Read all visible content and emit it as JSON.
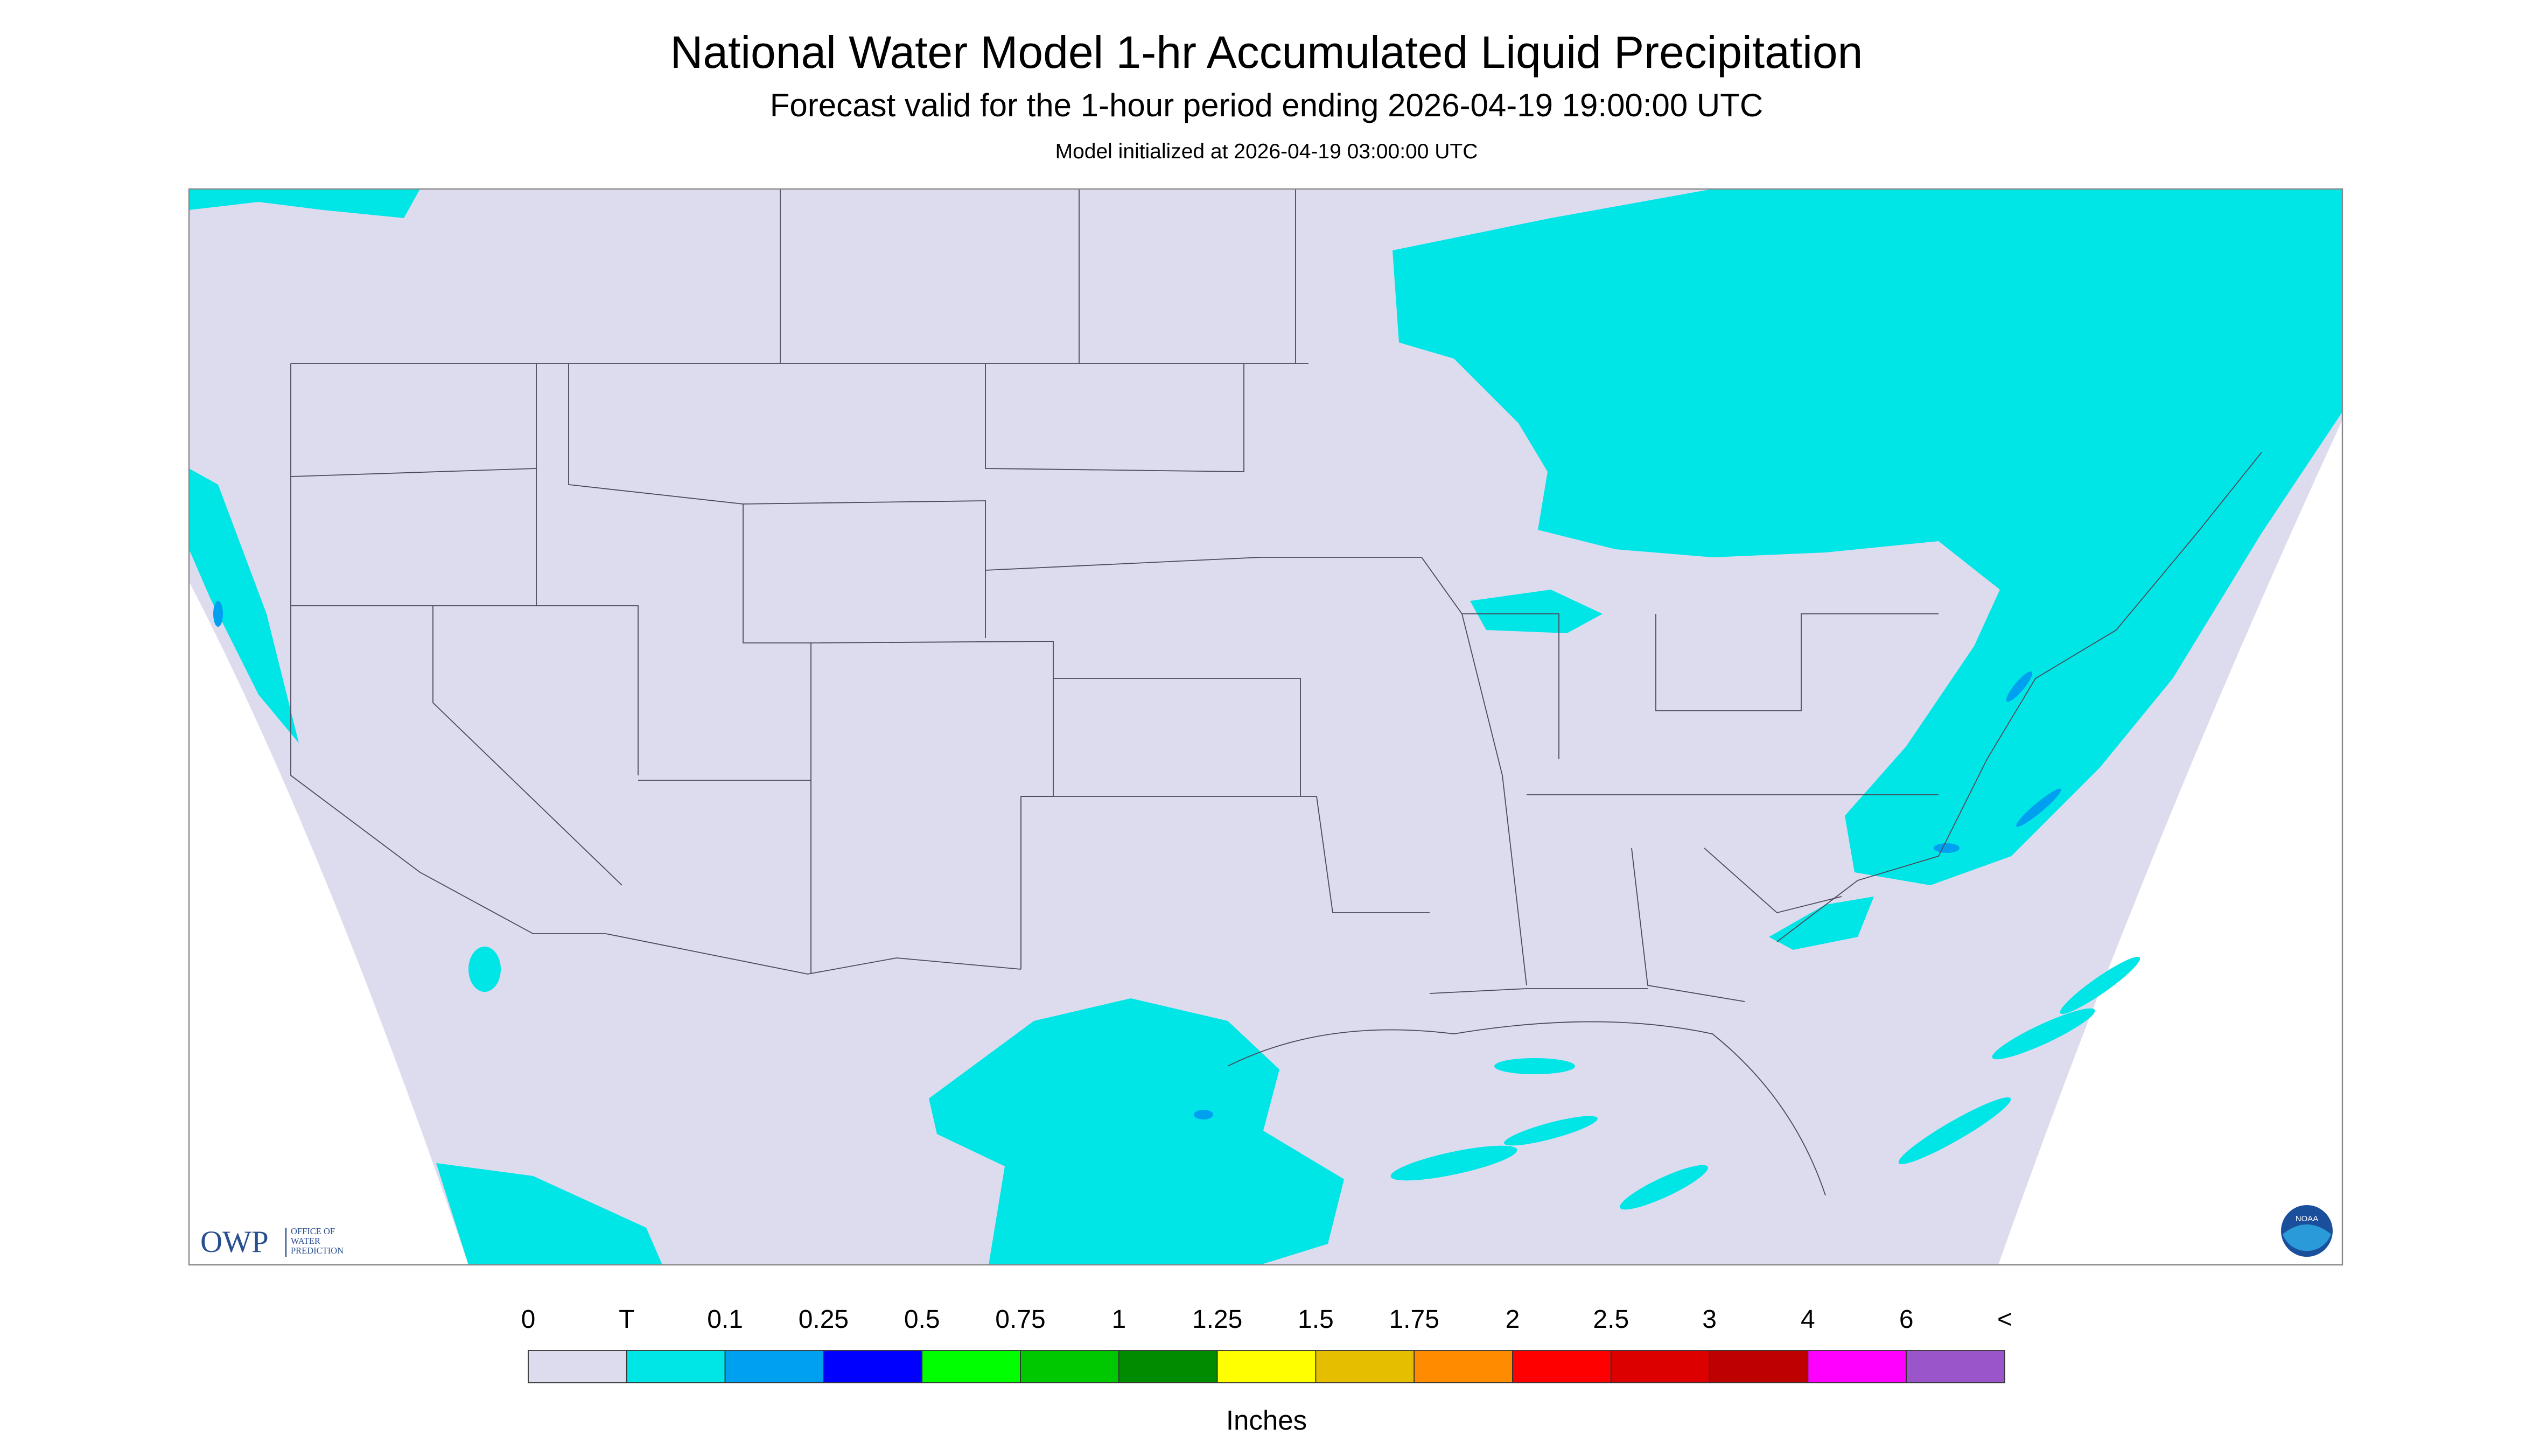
{
  "header": {
    "title": "National Water Model 1-hr Accumulated Liquid Precipitation",
    "subtitle": "Forecast valid for the 1-hour period ending 2026-04-19 19:00:00 UTC",
    "note": "Model initialized at 2026-04-19 03:00:00 UTC"
  },
  "logos": {
    "owp": "OWP",
    "owp_lines": [
      "OFFICE OF",
      "WATER",
      "PREDICTION"
    ],
    "noaa": "NOAA"
  },
  "legend": {
    "labels": [
      "0",
      "T",
      "0.1",
      "0.25",
      "0.5",
      "0.75",
      "1",
      "1.25",
      "1.5",
      "1.75",
      "2",
      "2.5",
      "3",
      "4",
      "6",
      "<"
    ],
    "colors": [
      "#dcdcee",
      "#00e5e5",
      "#00a0f0",
      "#0000ff",
      "#00ff00",
      "#00c800",
      "#008c00",
      "#ffff00",
      "#e6be00",
      "#ff8c00",
      "#ff0000",
      "#dc0000",
      "#be0000",
      "#ff00ff",
      "#9955c9"
    ],
    "unit": "Inches"
  }
}
